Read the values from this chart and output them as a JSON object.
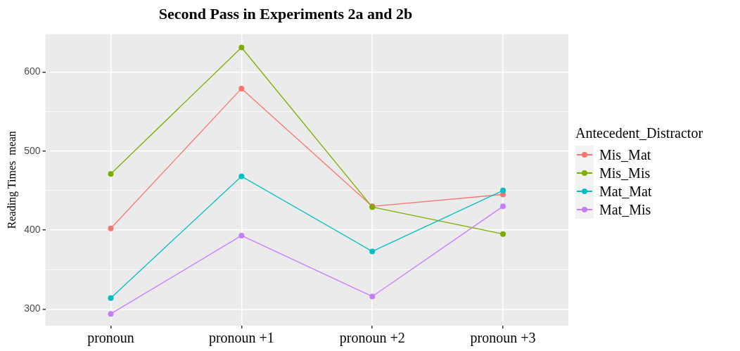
{
  "chart_data": {
    "type": "line",
    "title": "Second Pass in Experiments 2a and 2b",
    "ylabel": "Reading Times  mean",
    "legend_title": "Antecedent_Distractor",
    "categories": [
      "pronoun",
      "pronoun +1",
      "pronoun +2",
      "pronoun +3"
    ],
    "series": [
      {
        "name": "Mis_Mat",
        "color": "#f8766d",
        "values": [
          402,
          579,
          430,
          445
        ]
      },
      {
        "name": "Mis_Mis",
        "color": "#7cae00",
        "values": [
          471,
          631,
          429,
          395
        ]
      },
      {
        "name": "Mat_Mat",
        "color": "#00bfc4",
        "values": [
          314,
          468,
          373,
          450
        ]
      },
      {
        "name": "Mat_Mis",
        "color": "#c77cff",
        "values": [
          294,
          393,
          316,
          430
        ]
      }
    ],
    "ylim": [
      279,
      648
    ],
    "yticks": [
      300,
      {
        "value": 350,
        "label": null
      },
      400,
      {
        "value": 450,
        "label": null
      },
      500,
      {
        "value": 550,
        "label": null
      },
      600
    ],
    "grid": true,
    "legend": "right",
    "marker": "circle",
    "line_style": "solid"
  }
}
